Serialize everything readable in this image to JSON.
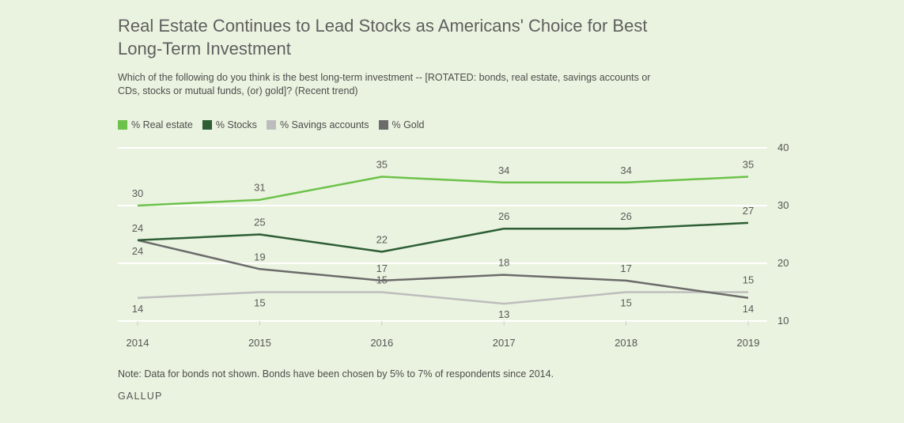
{
  "title": "Real Estate Continues to Lead Stocks as Americans' Choice for Best Long-Term Investment",
  "subtitle": "Which of the following do you think is the best long-term investment -- [ROTATED: bonds, real estate, savings accounts or CDs, stocks or mutual funds, (or) gold]? (Recent trend)",
  "note": "Note: Data for bonds not shown. Bonds have been chosen by 5% to 7% of respondents since 2014.",
  "source": "GALLUP",
  "chart_data": {
    "type": "line",
    "title": "Real Estate Continues to Lead Stocks as Americans' Choice for Best Long-Term Investment",
    "x": [
      "2014",
      "2015",
      "2016",
      "2017",
      "2018",
      "2019"
    ],
    "ylim": [
      10,
      40
    ],
    "yticks": [
      10,
      20,
      30,
      40
    ],
    "grid": true,
    "legend_position": "top-left",
    "series": [
      {
        "name": "% Real estate",
        "color": "#6cc24a",
        "values": [
          30,
          31,
          35,
          34,
          34,
          35
        ]
      },
      {
        "name": "% Stocks",
        "color": "#2d5e35",
        "values": [
          24,
          25,
          22,
          26,
          26,
          27
        ]
      },
      {
        "name": "% Savings accounts",
        "color": "#bdbdbd",
        "values": [
          14,
          15,
          15,
          13,
          15,
          15
        ]
      },
      {
        "name": "% Gold",
        "color": "#6b6b6b",
        "values": [
          24,
          19,
          17,
          18,
          17,
          14
        ]
      }
    ]
  }
}
